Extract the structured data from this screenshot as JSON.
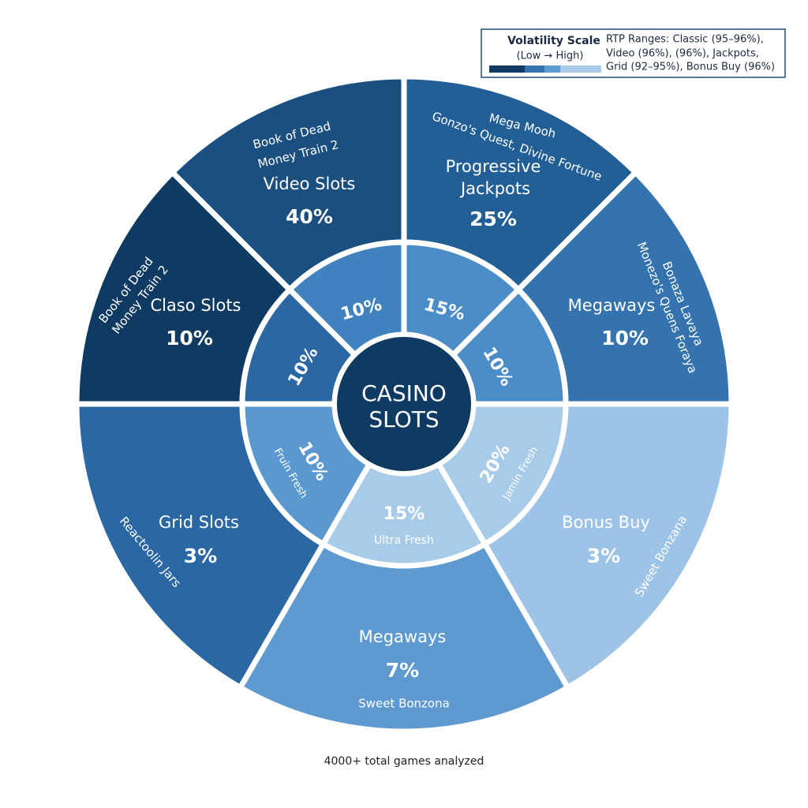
{
  "legend": {
    "title": "Volatility Scale",
    "subtitle": "(Low → High)",
    "note_lines": [
      "RTP Ranges: Classic (95–96%),",
      "Video (96%), (96%), Jackpots,",
      "Grid (92–95%), Bonus Buy (96%)"
    ]
  },
  "center": {
    "lines": [
      "CASINO",
      "SLOTS"
    ]
  },
  "outer": [
    {
      "name": [
        "Video Slots"
      ],
      "share": "40%",
      "examples": [
        "Book of Dead",
        "Money Train 2"
      ]
    },
    {
      "name": [
        "Progressive",
        "Jackpots"
      ],
      "share": "25%",
      "examples": [
        "Mega Mooh",
        "Gonzo's Quest, Divine Fortune"
      ]
    },
    {
      "name": [
        "Megaways"
      ],
      "share": "10%",
      "examples": [
        "Bonaza Lavaya",
        "Monezo's Quens Foraya"
      ]
    },
    {
      "name": [
        "Bonus Buy"
      ],
      "share": "3%",
      "examples": [
        "Sweet Bonzana"
      ]
    },
    {
      "name": [
        "Megaways"
      ],
      "share": "7%",
      "examples": [
        "Sweet Bonzona"
      ]
    },
    {
      "name": [
        "Grid Slots"
      ],
      "share": "3%",
      "examples": [
        "Reactoolin Jars"
      ]
    },
    {
      "name": [
        "Claso Slots"
      ],
      "share": "10%",
      "examples": [
        "Book of Dead",
        "Money Train 2"
      ]
    }
  ],
  "inner": [
    {
      "share": "10%"
    },
    {
      "share": "15%"
    },
    {
      "share": "10%"
    },
    {
      "share": "20%",
      "label": "Jamin Fresh"
    },
    {
      "share": "15%",
      "label": "Ultra Fresh"
    },
    {
      "share": "10%",
      "label": "Fruin Fresh"
    },
    {
      "share": "10%"
    }
  ],
  "footer": "4000+ total games analyzed"
}
